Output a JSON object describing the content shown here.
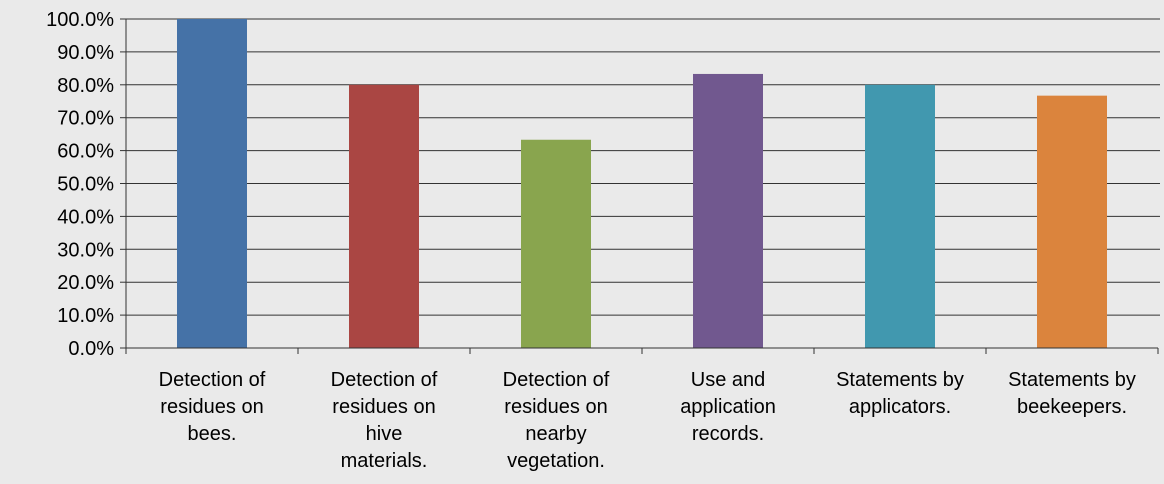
{
  "chart_data": {
    "type": "bar",
    "title": "",
    "xlabel": "",
    "ylabel": "",
    "ylim": [
      0,
      100
    ],
    "ytick_step": 10,
    "ytick_format": "percent-1dp",
    "grid": true,
    "legend": "none",
    "ytick_labels": [
      "0.0%",
      "10.0%",
      "20.0%",
      "30.0%",
      "40.0%",
      "50.0%",
      "60.0%",
      "70.0%",
      "80.0%",
      "90.0%",
      "100.0%"
    ],
    "categories": [
      [
        "Detection of",
        "residues on",
        "bees."
      ],
      [
        "Detection of",
        "residues on",
        "hive",
        "materials."
      ],
      [
        "Detection of",
        "residues on",
        "nearby",
        "vegetation."
      ],
      [
        "Use and",
        "application",
        "records."
      ],
      [
        "Statements by",
        "applicators."
      ],
      [
        "Statements by",
        "beekeepers."
      ]
    ],
    "values": [
      100.0,
      80.0,
      63.3,
      83.3,
      80.0,
      76.7
    ],
    "colors": [
      "#4572a7",
      "#aa4643",
      "#89a54e",
      "#71588f",
      "#4198af",
      "#db843d"
    ]
  }
}
